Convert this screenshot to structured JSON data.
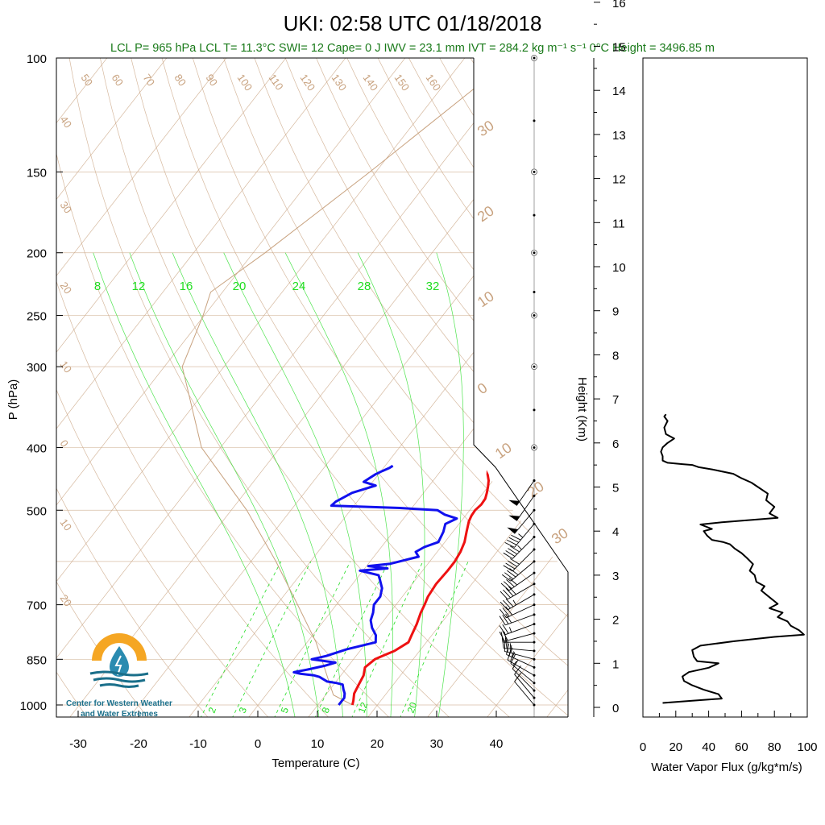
{
  "header": {
    "title": "UKI: 02:58 UTC 01/18/2018",
    "subtitle": "LCL P= 965 hPa  LCL T= 11.3°C  SWI= 12  Cape= 0 J  IWV = 23.1 mm  IVT = 284.2 kg m⁻¹ s⁻¹  0°C Height = 3496.85 m"
  },
  "colors": {
    "temperature": "#ee1111",
    "dewpoint": "#1111ee",
    "dry_adiabat": "#c8a27f",
    "mixing_ratio": "#22dd22",
    "flux": "#000000"
  },
  "logo": {
    "line1": "Center for Western Weather",
    "line2": "and Water Extremes"
  },
  "chart_data": [
    {
      "type": "line",
      "subtype": "skew-t log-p",
      "xlabel": "Temperature (C)",
      "ylabel": "P (hPa)",
      "x_ticks": [
        -30,
        -20,
        -10,
        0,
        10,
        20,
        30,
        40
      ],
      "x_tick_labels": [
        "-30",
        "-20",
        "-10",
        "0",
        "10",
        "20",
        "30",
        "40"
      ],
      "y_ticks": [
        100,
        150,
        200,
        250,
        300,
        400,
        500,
        700,
        850,
        1000
      ],
      "y_tick_labels": [
        "100",
        "150",
        "200",
        "250",
        "300",
        "400",
        "500",
        "700",
        "850",
        "1000"
      ],
      "xlim": [
        -34,
        51
      ],
      "ylim": [
        1050,
        100
      ],
      "y_scale": "log",
      "dry_adiabat_labels": [
        "50",
        "60",
        "70",
        "80",
        "90",
        "100",
        "110",
        "120",
        "130",
        "140",
        "150",
        "160"
      ],
      "left_labels": [
        "40",
        "30",
        "20",
        "10",
        "0",
        "10",
        "20"
      ],
      "isotherm_labels": [
        "30",
        "20",
        "10",
        "0",
        "10",
        "20",
        "30"
      ],
      "mixing_ratio_labels_top": [
        "8",
        "12",
        "16",
        "20",
        "24",
        "28",
        "32"
      ],
      "mixing_ratio_labels_bottom": [
        "2",
        "3",
        "5",
        "8",
        "12",
        "20"
      ],
      "series": [
        {
          "key": "temperature",
          "points": [
            [
              1000,
              15.8
            ],
            [
              985,
              15.4
            ],
            [
              960,
              14.6
            ],
            [
              930,
              14.2
            ],
            [
              900,
              13.8
            ],
            [
              875,
              13.0
            ],
            [
              850,
              13.6
            ],
            [
              840,
              14.4
            ],
            [
              825,
              15.8
            ],
            [
              800,
              17.0
            ],
            [
              780,
              16.6
            ],
            [
              750,
              16.0
            ],
            [
              720,
              15.2
            ],
            [
              700,
              14.8
            ],
            [
              680,
              14.3
            ],
            [
              650,
              14.0
            ],
            [
              620,
              14.2
            ],
            [
              600,
              14.2
            ],
            [
              580,
              13.9
            ],
            [
              560,
              13.3
            ],
            [
              540,
              12.3
            ],
            [
              520,
              11.3
            ],
            [
              510,
              11.0
            ],
            [
              500,
              10.9
            ],
            [
              490,
              11.2
            ],
            [
              480,
              11.1
            ],
            [
              470,
              10.6
            ],
            [
              460,
              10.0
            ],
            [
              450,
              9.3
            ],
            [
              440,
              8.3
            ],
            [
              430,
              7.5
            ],
            [
              420,
              6.9
            ]
          ]
        },
        {
          "key": "dewpoint",
          "points": [
            [
              1000,
              13.5
            ],
            [
              975,
              13.5
            ],
            [
              960,
              13.0
            ],
            [
              945,
              12.2
            ],
            [
              930,
              11.5
            ],
            [
              925,
              10.3
            ],
            [
              920,
              8.5
            ],
            [
              905,
              6.6
            ],
            [
              900,
              5.5
            ],
            [
              895,
              3.0
            ],
            [
              890,
              1.7
            ],
            [
              880,
              4.0
            ],
            [
              870,
              6.0
            ],
            [
              860,
              7.4
            ],
            [
              850,
              3.0
            ],
            [
              840,
              5.0
            ],
            [
              820,
              7.6
            ],
            [
              800,
              11.5
            ],
            [
              780,
              10.6
            ],
            [
              760,
              9.0
            ],
            [
              740,
              7.8
            ],
            [
              720,
              7.2
            ],
            [
              700,
              6.3
            ],
            [
              680,
              6.3
            ],
            [
              660,
              5.5
            ],
            [
              640,
              4.0
            ],
            [
              630,
              3.2
            ],
            [
              620,
              -0.5
            ],
            [
              615,
              3.8
            ],
            [
              610,
              0.3
            ],
            [
              605,
              3.7
            ],
            [
              600,
              4.9
            ],
            [
              590,
              7.5
            ],
            [
              580,
              6.4
            ],
            [
              570,
              7.2
            ],
            [
              560,
              8.9
            ],
            [
              540,
              8.4
            ],
            [
              525,
              7.7
            ],
            [
              515,
              8.9
            ],
            [
              508,
              6.4
            ],
            [
              500,
              4.6
            ],
            [
              496,
              -2.0
            ],
            [
              492,
              -13.8
            ],
            [
              485,
              -13.6
            ],
            [
              470,
              -12.0
            ],
            [
              458,
              -9.0
            ],
            [
              452,
              -11.5
            ],
            [
              446,
              -11.0
            ],
            [
              440,
              -10.5
            ],
            [
              435,
              -9.8
            ],
            [
              430,
              -9.0
            ],
            [
              427,
              -8.7
            ]
          ]
        },
        {
          "key": "parcel",
          "points": [
            [
              1000,
              15.8
            ],
            [
              965,
              11.3
            ],
            [
              800,
              1.5
            ],
            [
              700,
              -6.5
            ],
            [
              600,
              -15.8
            ],
            [
              500,
              -27.4
            ],
            [
              400,
              -43.2
            ],
            [
              300,
              -57.0
            ],
            [
              250,
              -60.2
            ],
            [
              230,
              -62.0
            ],
            [
              200,
              -58.0
            ],
            [
              150,
              -51.0
            ],
            [
              100,
              -42.0
            ]
          ]
        }
      ],
      "wind_barbs": [
        [
          1000,
          320,
          10
        ],
        [
          975,
          320,
          10
        ],
        [
          950,
          315,
          12
        ],
        [
          925,
          310,
          15
        ],
        [
          900,
          300,
          20
        ],
        [
          875,
          295,
          25
        ],
        [
          850,
          285,
          25
        ],
        [
          825,
          275,
          25
        ],
        [
          800,
          270,
          20
        ],
        [
          775,
          255,
          20
        ],
        [
          750,
          250,
          25
        ],
        [
          725,
          250,
          30
        ],
        [
          700,
          245,
          30
        ],
        [
          675,
          240,
          35
        ],
        [
          650,
          240,
          40
        ],
        [
          625,
          235,
          40
        ],
        [
          600,
          230,
          40
        ],
        [
          575,
          225,
          40
        ],
        [
          550,
          225,
          45
        ],
        [
          525,
          220,
          45
        ],
        [
          500,
          220,
          50
        ],
        [
          475,
          215,
          50
        ],
        [
          450,
          215,
          50
        ]
      ]
    },
    {
      "type": "line",
      "xlabel": "Water Vapor Flux (g/kg*m/s)",
      "ylabel": "Height (Km)",
      "x_ticks": [
        0,
        20,
        40,
        60,
        80,
        100
      ],
      "x_tick_labels": [
        "0",
        "20",
        "40",
        "60",
        "80",
        "100"
      ],
      "y_ticks": [
        0,
        1,
        2,
        3,
        4,
        5,
        6,
        7,
        8,
        9,
        10,
        11,
        12,
        13,
        14,
        15,
        16
      ],
      "y_tick_labels": [
        "0",
        "1",
        "2",
        "3",
        "4",
        "5",
        "6",
        "7",
        "8",
        "9",
        "10",
        "11",
        "12",
        "13",
        "14",
        "15",
        "16"
      ],
      "xlim": [
        0,
        100
      ],
      "ylim": [
        -0.2,
        16.3
      ],
      "series": [
        {
          "key": "flux",
          "points": [
            [
              12,
              0.1
            ],
            [
              30,
              0.15
            ],
            [
              48,
              0.2
            ],
            [
              46,
              0.3
            ],
            [
              37,
              0.4
            ],
            [
              30,
              0.5
            ],
            [
              25,
              0.6
            ],
            [
              24,
              0.7
            ],
            [
              28,
              0.8
            ],
            [
              40,
              0.9
            ],
            [
              46,
              1.0
            ],
            [
              33,
              1.05
            ],
            [
              31,
              1.15
            ],
            [
              30,
              1.3
            ],
            [
              35,
              1.4
            ],
            [
              55,
              1.5
            ],
            [
              80,
              1.6
            ],
            [
              98,
              1.65
            ],
            [
              95,
              1.75
            ],
            [
              90,
              1.85
            ],
            [
              88,
              1.95
            ],
            [
              82,
              2.05
            ],
            [
              85,
              2.15
            ],
            [
              77,
              2.25
            ],
            [
              82,
              2.35
            ],
            [
              77,
              2.5
            ],
            [
              72,
              2.65
            ],
            [
              74,
              2.75
            ],
            [
              69,
              2.85
            ],
            [
              68,
              3.0
            ],
            [
              65,
              3.1
            ],
            [
              67,
              3.25
            ],
            [
              63,
              3.4
            ],
            [
              60,
              3.5
            ],
            [
              56,
              3.6
            ],
            [
              53,
              3.7
            ],
            [
              49,
              3.75
            ],
            [
              42,
              3.8
            ],
            [
              39,
              3.9
            ],
            [
              37,
              4.0
            ],
            [
              42,
              4.05
            ],
            [
              35,
              4.15
            ],
            [
              48,
              4.2
            ],
            [
              65,
              4.25
            ],
            [
              82,
              4.3
            ],
            [
              77,
              4.4
            ],
            [
              80,
              4.55
            ],
            [
              75,
              4.7
            ],
            [
              76,
              4.85
            ],
            [
              70,
              5.0
            ],
            [
              66,
              5.1
            ],
            [
              60,
              5.2
            ],
            [
              55,
              5.3
            ],
            [
              42,
              5.4
            ],
            [
              34,
              5.45
            ],
            [
              30,
              5.5
            ],
            [
              24,
              5.52
            ],
            [
              15,
              5.55
            ],
            [
              12,
              5.6
            ],
            [
              12,
              5.7
            ],
            [
              11,
              5.8
            ],
            [
              12,
              5.9
            ],
            [
              15,
              6.0
            ],
            [
              19,
              6.1
            ],
            [
              14,
              6.2
            ],
            [
              13,
              6.35
            ],
            [
              15,
              6.5
            ],
            [
              13,
              6.6
            ],
            [
              14,
              6.65
            ]
          ]
        }
      ]
    }
  ]
}
